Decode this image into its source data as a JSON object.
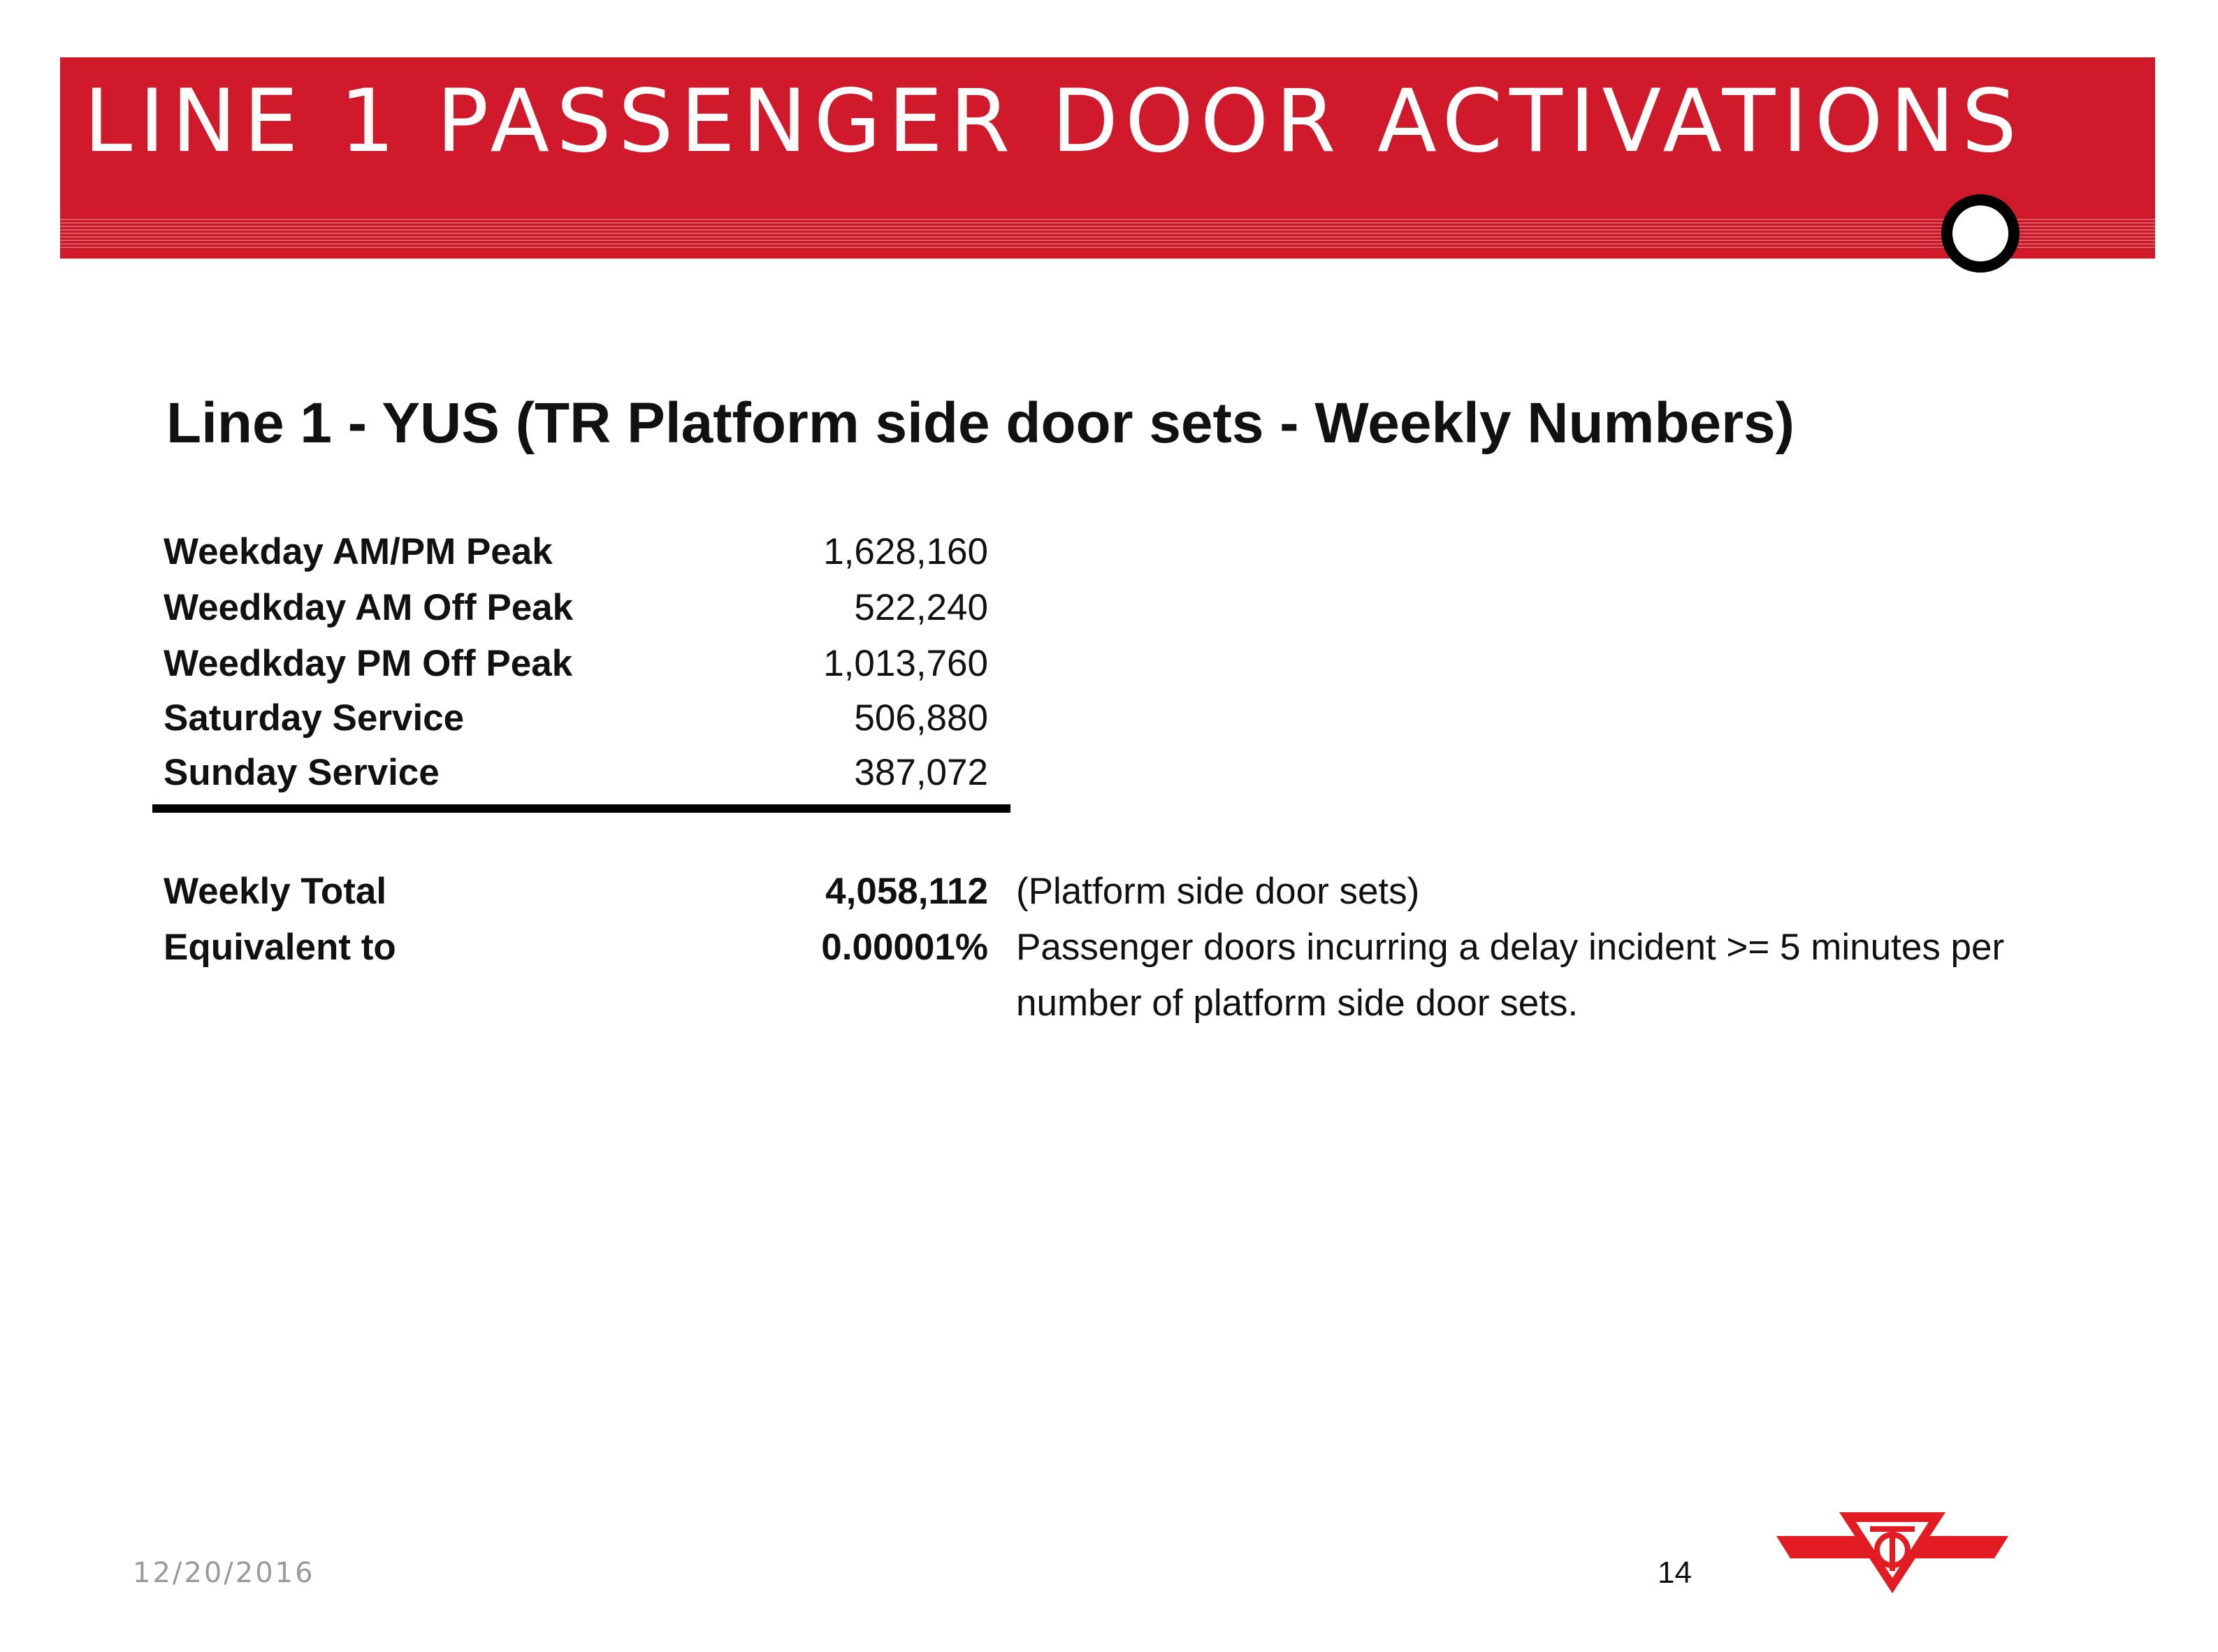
{
  "header": {
    "title": "LINE 1 PASSENGER DOOR ACTIVATIONS",
    "accent_color": "#d01a2b"
  },
  "subtitle": "Line 1 - YUS (TR Platform side door sets - Weekly Numbers)",
  "table": {
    "rows": [
      {
        "label": "Weekday AM/PM Peak",
        "value": "1,628,160"
      },
      {
        "label": "Weedkday AM Off Peak",
        "value": "522,240"
      },
      {
        "label": "Weedkday PM Off Peak",
        "value": "1,013,760"
      },
      {
        "label": "Saturday Service",
        "value": "506,880"
      },
      {
        "label": "Sunday Service",
        "value": "387,072"
      }
    ],
    "total": {
      "label": "Weekly Total",
      "value": "4,058,112",
      "note": "(Platform side door sets)"
    },
    "equivalent": {
      "label": "Equivalent to",
      "value": "0.00001%",
      "note_line1": "Passenger doors incurring a delay incident >= 5 minutes per",
      "note_line2": "number of platform side door sets."
    }
  },
  "footer": {
    "date": "12/20/2016",
    "page": "14"
  },
  "logo": {
    "icon": "ttc-logo-icon",
    "text": "TTC",
    "color": "#e31b23"
  }
}
